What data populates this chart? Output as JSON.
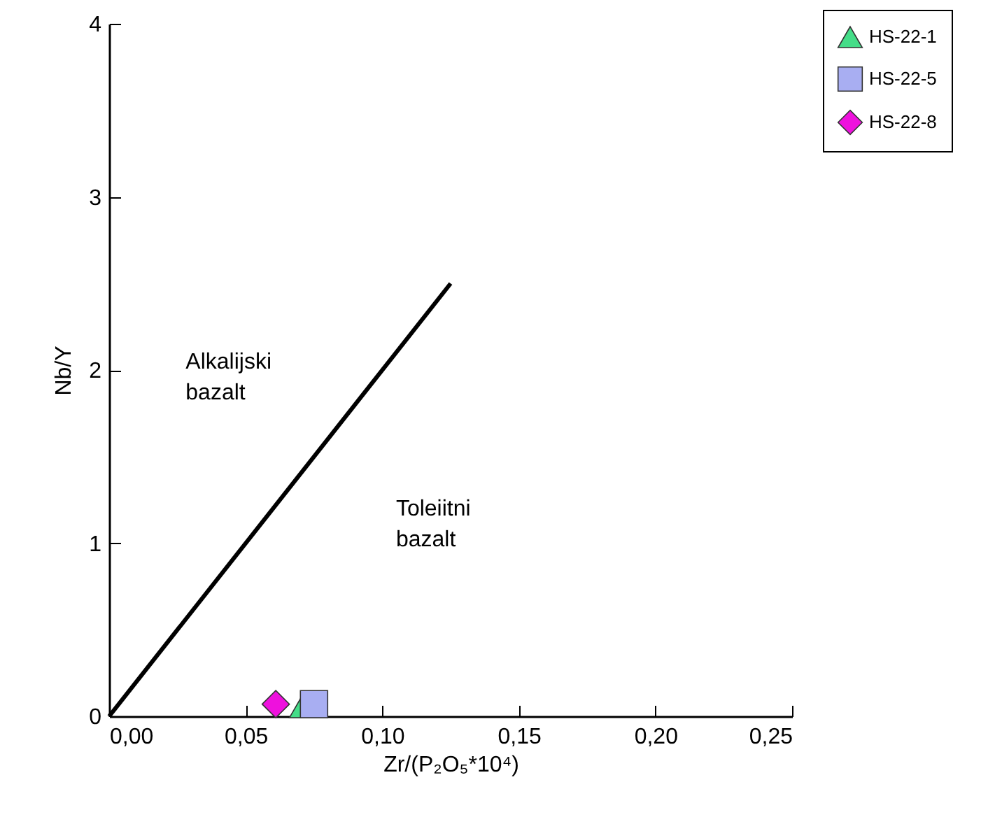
{
  "chart_data": {
    "type": "scatter",
    "xlabel": "Zr/(P₂O₅*10⁴)",
    "ylabel": "Nb/Y",
    "xlim": [
      0,
      0.25
    ],
    "ylim": [
      0,
      4
    ],
    "xticks": [
      {
        "value": 0,
        "label": "0,00"
      },
      {
        "value": 0.05,
        "label": "0,05"
      },
      {
        "value": 0.1,
        "label": "0,10"
      },
      {
        "value": 0.15,
        "label": "0,15"
      },
      {
        "value": 0.2,
        "label": "0,20"
      },
      {
        "value": 0.25,
        "label": "0,25"
      }
    ],
    "yticks": [
      0,
      1,
      2,
      3,
      4
    ],
    "grid": false,
    "legend": "top right",
    "annotations": [
      "Alkalijski\nbazalt",
      "Toleiitni\nbazalt"
    ],
    "series": [
      {
        "type": "line",
        "color": "#000000",
        "x": [
          0,
          0.125
        ],
        "values": [
          0,
          2.5
        ]
      },
      {
        "name": "HS-22-1",
        "color": "#44dd88",
        "marker": "triangle",
        "x": [
          0.071
        ],
        "values": [
          0.06
        ]
      },
      {
        "name": "HS-22-5",
        "color": "#a8aef2",
        "marker": "square",
        "x": [
          0.075
        ],
        "values": [
          0.07
        ]
      },
      {
        "name": "HS-22-8",
        "color": "#ee11dd",
        "marker": "diamond",
        "x": [
          0.061
        ],
        "values": [
          0.07
        ]
      }
    ]
  }
}
